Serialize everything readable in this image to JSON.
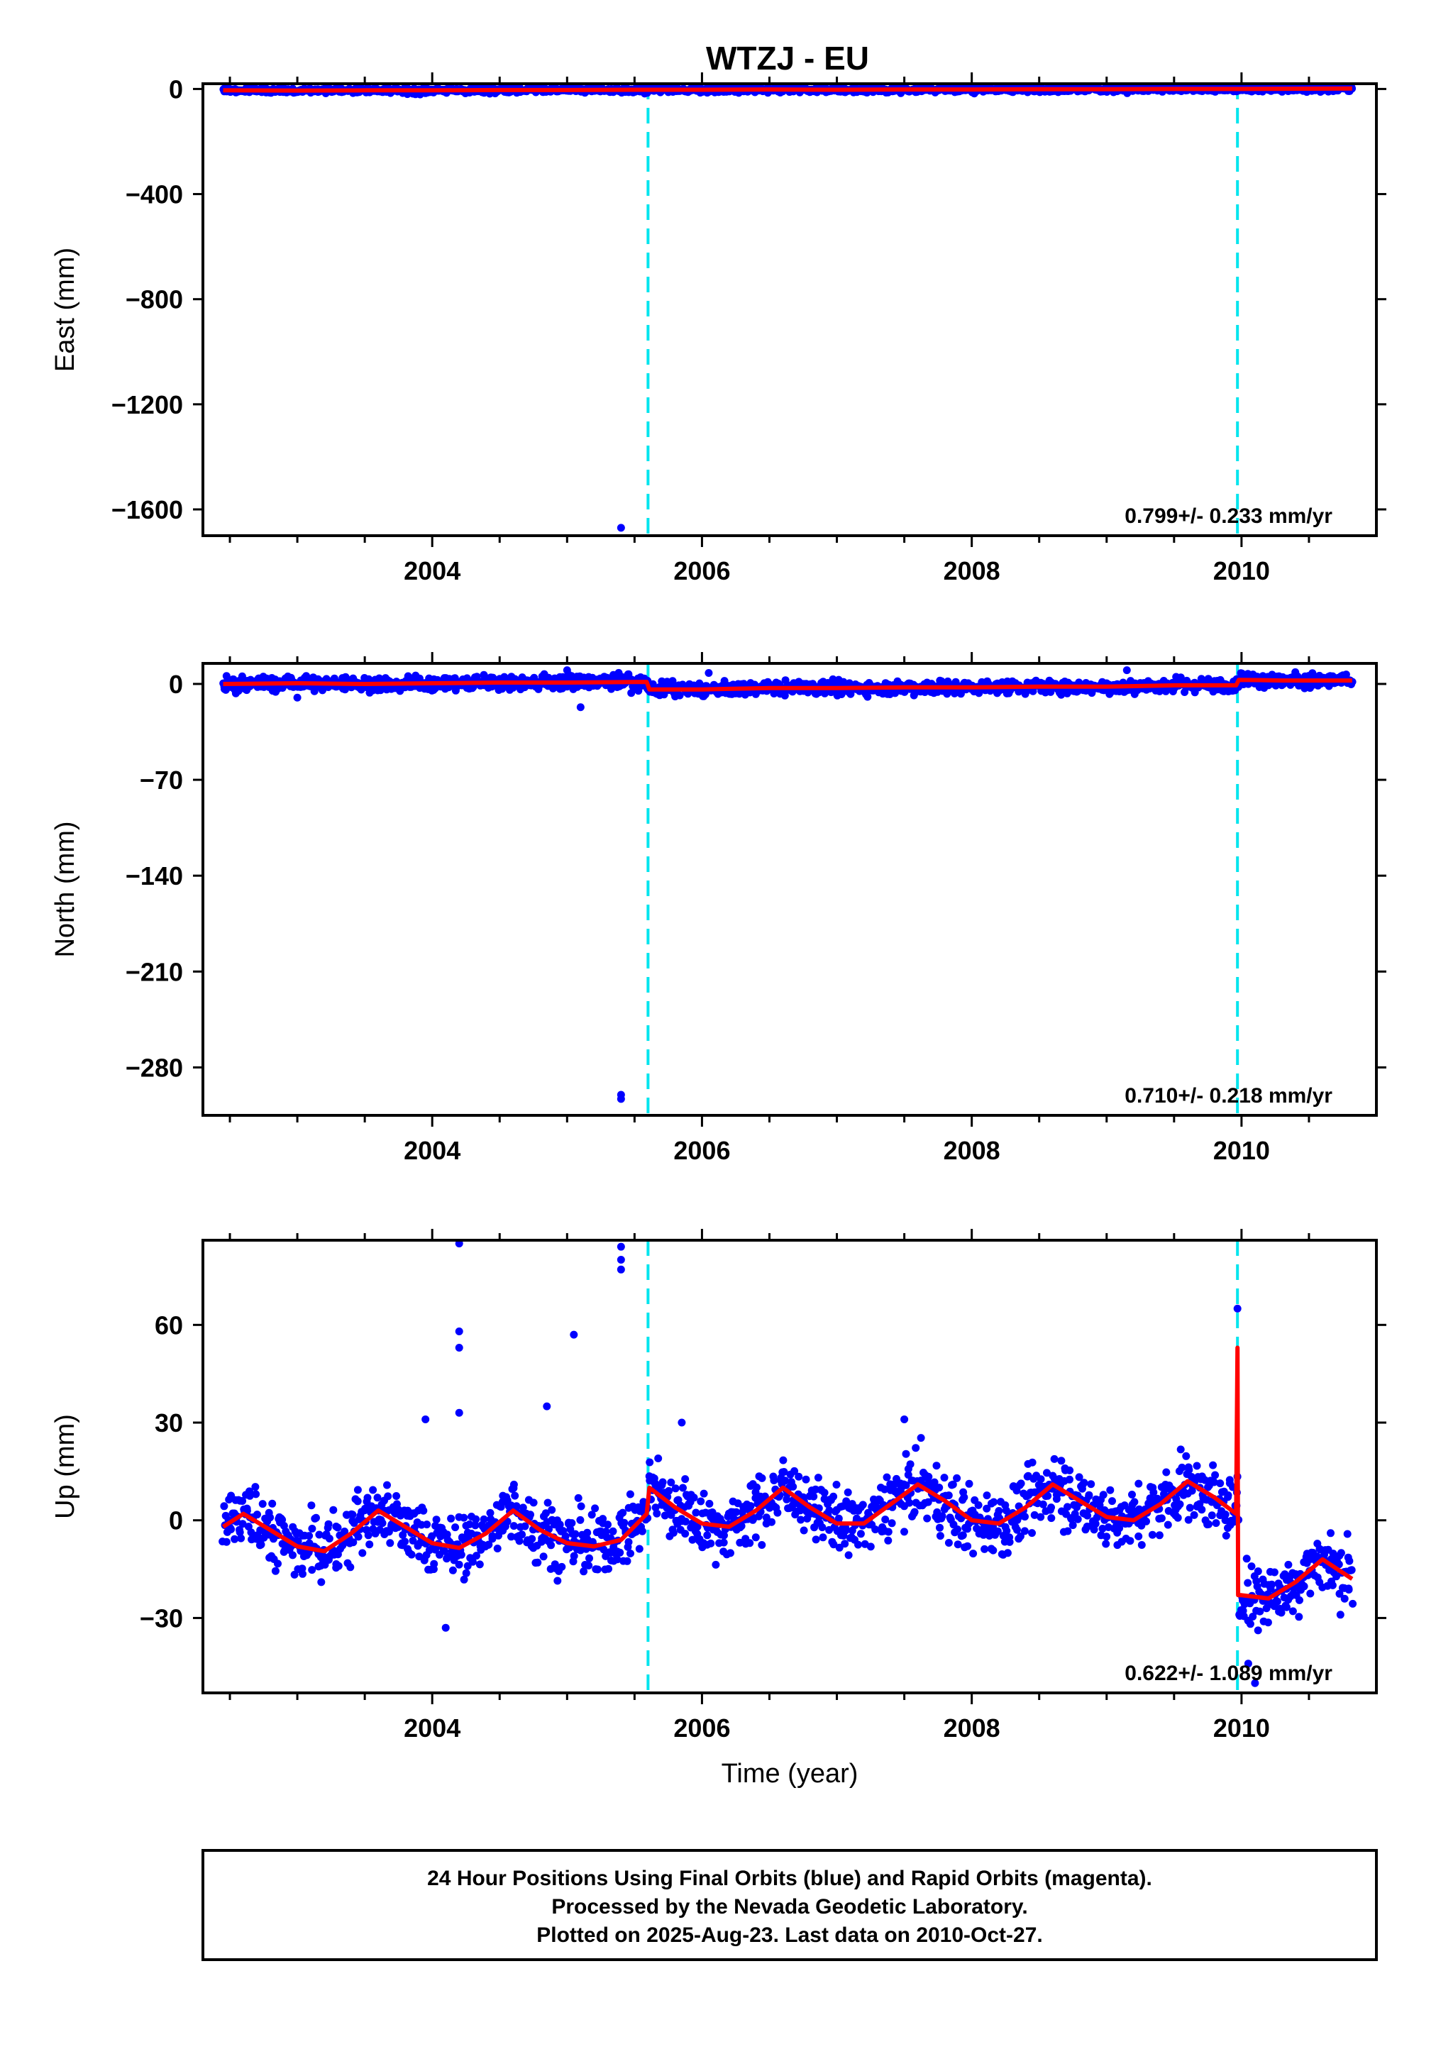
{
  "title": "WTZJ - EU",
  "colors": {
    "data": "#0000ff",
    "model": "#ff0000",
    "offset": "#00e5ee",
    "frame": "#000000"
  },
  "chart_data": [
    {
      "type": "scatter",
      "ylabel": "East (mm)",
      "xlabel": "",
      "xlim": [
        2002.3,
        2011.0
      ],
      "ylim": [
        -1700,
        20
      ],
      "xticks": [
        "2004",
        "2006",
        "2008",
        "2010"
      ],
      "yticks": [
        "0",
        "−400",
        "−800",
        "−1200",
        "−1600"
      ],
      "offset_epochs": [
        2005.6,
        2009.97
      ],
      "rate_label": "0.799+/- 0.233 mm/yr",
      "model_series": {
        "x": [
          2002.45,
          2003.0,
          2003.5,
          2004.0,
          2004.5,
          2005.0,
          2005.5,
          2006.0,
          2006.5,
          2007.0,
          2007.5,
          2008.0,
          2008.5,
          2009.0,
          2009.5,
          2010.0,
          2010.5,
          2010.82
        ],
        "y": [
          -5,
          -6,
          -5,
          -5,
          -4,
          -4,
          -3,
          -3,
          -2,
          -3,
          -2,
          -2,
          -1,
          -1,
          0,
          0,
          1,
          2
        ]
      },
      "data_outliers": [
        [
          2005.4,
          -1670
        ],
        [
          2005.2,
          8
        ],
        [
          2007.05,
          6
        ]
      ]
    },
    {
      "type": "scatter",
      "ylabel": "North (mm)",
      "xlabel": "",
      "xlim": [
        2002.3,
        2011.0
      ],
      "ylim": [
        -315,
        15
      ],
      "xticks": [
        "2004",
        "2006",
        "2008",
        "2010"
      ],
      "yticks": [
        "0",
        "−70",
        "−140",
        "−210",
        "−280"
      ],
      "offset_epochs": [
        2005.6,
        2009.97
      ],
      "rate_label": "0.710+/- 0.218 mm/yr",
      "model_series": {
        "x": [
          2002.45,
          2003.0,
          2003.5,
          2004.0,
          2004.5,
          2005.0,
          2005.59,
          2005.61,
          2006.0,
          2006.5,
          2007.0,
          2007.5,
          2008.0,
          2008.5,
          2009.0,
          2009.5,
          2009.96,
          2009.98,
          2010.3,
          2010.82
        ],
        "y": [
          0,
          0.5,
          0,
          0.5,
          1,
          1,
          1.5,
          -4,
          -4,
          -3,
          -3,
          -2.5,
          -2.5,
          -2,
          -2,
          -1,
          -1,
          3,
          2.5,
          2.5
        ]
      },
      "data_outliers": [
        [
          2005.4,
          -300
        ],
        [
          2005.4,
          -303
        ],
        [
          2003.0,
          -10
        ],
        [
          2005.1,
          -17
        ],
        [
          2005.0,
          10
        ],
        [
          2009.15,
          10
        ],
        [
          2006.05,
          8
        ]
      ]
    },
    {
      "type": "scatter",
      "ylabel": "Up (mm)",
      "xlabel": "Time (year)",
      "xlim": [
        2002.3,
        2011.0
      ],
      "ylim": [
        -53,
        86
      ],
      "xticks": [
        "2004",
        "2006",
        "2008",
        "2010"
      ],
      "yticks": [
        "60",
        "30",
        "0",
        "−30"
      ],
      "offset_epochs": [
        2005.6,
        2009.97
      ],
      "rate_label": "0.622+/- 1.089 mm/yr",
      "model_series": {
        "x": [
          2002.45,
          2002.6,
          2002.8,
          2003.0,
          2003.2,
          2003.4,
          2003.6,
          2003.8,
          2004.0,
          2004.2,
          2004.4,
          2004.6,
          2004.8,
          2005.0,
          2005.2,
          2005.4,
          2005.59,
          2005.61,
          2005.8,
          2006.0,
          2006.2,
          2006.4,
          2006.6,
          2006.8,
          2007.0,
          2007.2,
          2007.4,
          2007.6,
          2007.8,
          2008.0,
          2008.2,
          2008.4,
          2008.6,
          2008.8,
          2009.0,
          2009.2,
          2009.4,
          2009.6,
          2009.8,
          2009.96,
          2009.97,
          2009.975,
          2010.0,
          2010.2,
          2010.4,
          2010.6,
          2010.82
        ],
        "y": [
          -2,
          2,
          -3,
          -8,
          -9.5,
          -4,
          3,
          -2,
          -7,
          -8.5,
          -4,
          3,
          -3,
          -7,
          -8,
          -6,
          2,
          10,
          4,
          -1,
          -2,
          3,
          10,
          4,
          -1,
          -1,
          5,
          11,
          6,
          0,
          -1,
          4,
          11,
          6,
          1,
          0,
          5,
          12,
          7,
          2,
          53,
          -23,
          -23,
          -24,
          -19,
          -12,
          -18
        ]
      },
      "data_outliers": [
        [
          2004.2,
          85
        ],
        [
          2004.2,
          58
        ],
        [
          2004.2,
          53
        ],
        [
          2004.2,
          33
        ],
        [
          2005.4,
          84
        ],
        [
          2005.4,
          80
        ],
        [
          2005.4,
          77
        ],
        [
          2005.05,
          57
        ],
        [
          2004.85,
          35
        ],
        [
          2009.97,
          65
        ],
        [
          2010.1,
          -50
        ],
        [
          2010.05,
          -44
        ],
        [
          2003.95,
          31
        ],
        [
          2004.1,
          -33
        ],
        [
          2005.85,
          30
        ],
        [
          2007.5,
          31
        ]
      ]
    }
  ],
  "footer": {
    "line1": "24 Hour Positions Using Final Orbits (blue) and Rapid Orbits (magenta).",
    "line2": "Processed by the Nevada Geodetic Laboratory.",
    "line3": "Plotted on 2025-Aug-23. Last data on 2010-Oct-27."
  }
}
